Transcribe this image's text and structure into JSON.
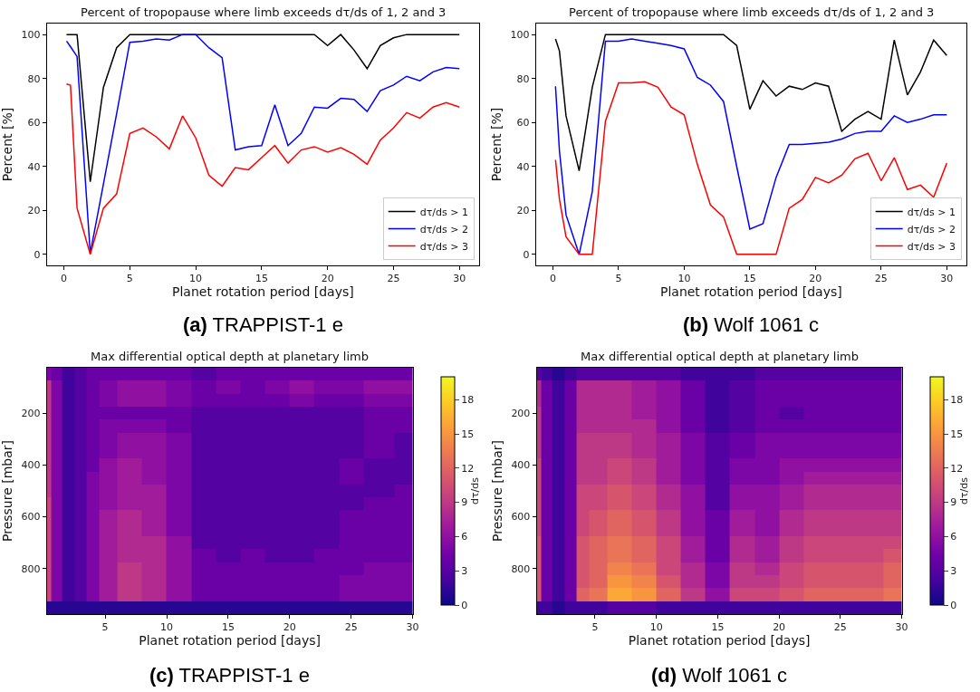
{
  "chart_data": [
    {
      "type": "line",
      "title": "Percent of tropopause where limb exceeds dτ/ds of 1, 2 and 3",
      "xlabel": "Planet rotation period [days]",
      "ylabel": "Percent [%]",
      "x": [
        0.2,
        0.5,
        1,
        2,
        3,
        4,
        5,
        6,
        7,
        8,
        9,
        10,
        11,
        12,
        13,
        14,
        15,
        16,
        17,
        18,
        19,
        20,
        21,
        22,
        23,
        24,
        25,
        26,
        27,
        28,
        29,
        30
      ],
      "series": [
        {
          "name": "dτ/ds > 1",
          "color": "#000000",
          "values": [
            100,
            100,
            100,
            33,
            76,
            94,
            100,
            100,
            100,
            100,
            100,
            100,
            100,
            100,
            100,
            100,
            100,
            100,
            100,
            100,
            100,
            95,
            100,
            93,
            84.5,
            95,
            98.5,
            100,
            100,
            100,
            100,
            100
          ]
        },
        {
          "name": "dτ/ds > 2",
          "color": "#0000ff",
          "values": [
            97,
            94.5,
            90,
            0.5,
            32,
            64,
            96.5,
            97,
            98,
            97.5,
            100,
            100,
            94,
            89.5,
            47.5,
            49,
            49.5,
            68,
            49.5,
            55,
            67,
            66.5,
            71,
            70.5,
            65,
            74.5,
            77,
            81,
            79,
            83,
            85,
            84.5
          ]
        },
        {
          "name": "dτ/ds > 3",
          "color": "#ff0000",
          "values": [
            77.5,
            77,
            21,
            0,
            21,
            27.5,
            55,
            57.5,
            53.5,
            48,
            63,
            53,
            36,
            31,
            39.5,
            38.5,
            44,
            49.5,
            41.5,
            47.5,
            49,
            46.5,
            48.5,
            45.5,
            41,
            52,
            57.5,
            64.5,
            62,
            67,
            69,
            67
          ]
        }
      ],
      "xlim": [
        -1.3,
        31.5
      ],
      "ylim": [
        -5,
        105
      ],
      "xticks": [
        0,
        5,
        10,
        15,
        20,
        25,
        30
      ],
      "yticks": [
        0,
        20,
        40,
        60,
        80,
        100
      ],
      "legend": "bottom right",
      "annotations": [
        "(a) TRAPPIST-1 e"
      ]
    },
    {
      "type": "line",
      "title": "Percent of tropopause where limb exceeds dτ/ds of 1, 2 and 3",
      "xlabel": "Planet rotation period [days]",
      "ylabel": "Percent [%]",
      "x": [
        0.2,
        0.5,
        1,
        2,
        3,
        4,
        5,
        6,
        7,
        8,
        9,
        10,
        11,
        12,
        13,
        14,
        15,
        16,
        17,
        18,
        19,
        20,
        21,
        22,
        23,
        24,
        25,
        26,
        27,
        28,
        29,
        30
      ],
      "series": [
        {
          "name": "dτ/ds > 1",
          "color": "#000000",
          "values": [
            98,
            92.5,
            63,
            38,
            76,
            100,
            100,
            100,
            100,
            100,
            100,
            100,
            100,
            100,
            100,
            95,
            66,
            79,
            72,
            76.5,
            75,
            78,
            76.5,
            56,
            61.5,
            65,
            61.5,
            97.5,
            72.5,
            83,
            97.5,
            90.5
          ]
        },
        {
          "name": "dτ/ds > 2",
          "color": "#0000ff",
          "values": [
            76.5,
            47,
            18,
            0,
            28.5,
            97,
            97,
            98,
            97,
            96,
            95,
            93.5,
            80.5,
            77,
            69.5,
            40,
            11.5,
            14,
            35,
            50,
            50,
            50.5,
            51,
            52.5,
            55,
            56,
            56,
            63,
            60,
            61.5,
            63.5,
            63.5
          ]
        },
        {
          "name": "dτ/ds > 3",
          "color": "#ff0000",
          "values": [
            43,
            25,
            8,
            0,
            0,
            60.5,
            78,
            78,
            78.5,
            76,
            67,
            63.5,
            41,
            22.5,
            17,
            0,
            0,
            0,
            0,
            21,
            25,
            35,
            32.5,
            36,
            43.5,
            46,
            33.5,
            44,
            29.5,
            31.5,
            26,
            41.5
          ]
        }
      ],
      "xlim": [
        -1.3,
        31.5
      ],
      "ylim": [
        -5,
        105
      ],
      "xticks": [
        0,
        5,
        10,
        15,
        20,
        25,
        30
      ],
      "yticks": [
        0,
        20,
        40,
        60,
        80,
        100
      ],
      "legend": "bottom right",
      "annotations": [
        "(b) Wolf 1061 c"
      ]
    },
    {
      "type": "heatmap",
      "title": "Max differential optical depth at planetary limb",
      "xlabel": "Planet rotation period [days]",
      "ylabel": "Pressure [mbar]",
      "clabel": "dτ/ds",
      "x": [
        0.25,
        1,
        2,
        3,
        4,
        5,
        7,
        9,
        11,
        13,
        15,
        17,
        19,
        21,
        23,
        25,
        27,
        30
      ],
      "y_categories": [
        null,
        null,
        null,
        "200",
        null,
        null,
        null,
        "400",
        null,
        null,
        null,
        "600",
        null,
        null,
        null,
        "800",
        null,
        null,
        null
      ],
      "cells": [
        [
          5,
          4,
          2,
          3,
          4,
          4,
          4,
          4,
          4,
          3,
          4,
          4,
          4,
          4,
          4,
          4,
          4,
          4
        ],
        [
          9,
          5,
          2,
          3,
          4,
          5,
          6,
          6,
          5,
          4,
          5,
          4,
          5,
          6,
          5,
          5,
          6,
          6
        ],
        [
          9,
          5,
          2,
          3,
          4,
          5,
          6,
          6,
          5,
          4,
          4,
          4,
          4,
          5,
          4,
          4,
          5,
          5
        ],
        [
          9,
          5,
          2,
          3,
          4,
          4,
          4,
          4,
          4,
          3,
          3,
          3,
          3,
          3,
          3,
          3,
          4,
          4
        ],
        [
          9,
          5,
          2,
          3,
          4,
          5,
          5,
          5,
          4,
          3,
          3,
          3,
          3,
          3,
          3,
          3,
          4,
          4
        ],
        [
          9,
          5,
          2,
          3,
          4,
          5,
          6,
          6,
          5,
          3,
          3,
          3,
          3,
          3,
          3,
          3,
          4,
          3
        ],
        [
          9,
          5,
          2,
          3,
          4,
          5,
          6,
          6,
          5,
          3,
          3,
          3,
          3,
          3,
          3,
          3,
          4,
          3
        ],
        [
          9,
          5,
          2,
          3,
          4,
          6,
          7,
          6,
          5,
          3,
          3,
          3,
          3,
          3,
          3,
          4,
          3,
          3
        ],
        [
          9,
          5,
          2,
          3,
          5,
          6,
          7,
          6,
          5,
          3,
          3,
          3,
          3,
          3,
          3,
          4,
          3,
          3
        ],
        [
          9,
          5,
          2,
          3,
          5,
          6,
          7,
          7,
          5,
          3,
          3,
          3,
          3,
          3,
          3,
          3,
          3,
          4
        ],
        [
          10,
          5,
          2,
          3,
          5,
          6,
          7,
          7,
          5,
          3,
          3,
          3,
          3,
          3,
          3,
          3,
          4,
          4
        ],
        [
          10,
          5,
          2,
          3,
          5,
          7,
          8,
          7,
          5,
          3,
          3,
          3,
          3,
          3,
          3,
          4,
          4,
          4
        ],
        [
          10,
          5,
          2,
          3,
          5,
          7,
          8,
          7,
          5,
          3,
          3,
          3,
          3,
          3,
          3,
          4,
          4,
          4
        ],
        [
          10,
          5,
          2,
          3,
          5,
          7,
          8,
          8,
          6,
          3,
          3,
          3,
          3,
          3,
          3,
          4,
          4,
          4
        ],
        [
          10,
          5,
          2,
          3,
          5,
          7,
          8,
          8,
          6,
          4,
          3,
          4,
          3,
          3,
          4,
          4,
          4,
          4
        ],
        [
          10,
          5,
          2,
          3,
          5,
          7,
          9,
          8,
          6,
          4,
          4,
          4,
          4,
          4,
          4,
          4,
          5,
          5
        ],
        [
          10,
          5,
          2,
          3,
          5,
          7,
          9,
          8,
          6,
          4,
          4,
          4,
          4,
          4,
          4,
          5,
          5,
          5
        ],
        [
          10,
          5,
          2,
          3,
          5,
          7,
          9,
          8,
          6,
          4,
          4,
          4,
          4,
          4,
          4,
          5,
          5,
          5
        ],
        [
          1,
          1,
          1,
          1,
          1,
          1,
          1,
          1,
          1,
          1,
          1,
          1,
          1,
          1,
          1,
          1,
          1,
          1
        ]
      ],
      "clim": [
        0,
        20
      ],
      "cticks": [
        0,
        3,
        6,
        9,
        12,
        15,
        18
      ],
      "xlim": [
        0.25,
        30
      ],
      "xticks": [
        5,
        10,
        15,
        20,
        25,
        30
      ],
      "annotations": [
        "(c) TRAPPIST-1 e"
      ]
    },
    {
      "type": "heatmap",
      "title": "Max differential optical depth at planetary limb",
      "xlabel": "Planet rotation period [days]",
      "ylabel": "Pressure [mbar]",
      "clabel": "dτ/ds",
      "x": [
        0.25,
        1,
        2,
        3,
        4,
        5,
        7,
        9,
        11,
        13,
        15,
        17,
        19,
        21,
        23,
        25,
        27,
        30
      ],
      "y_categories": [
        null,
        null,
        null,
        "200",
        null,
        null,
        null,
        "400",
        null,
        null,
        null,
        "600",
        null,
        null,
        null,
        "800",
        null,
        null,
        null
      ],
      "cells": [
        [
          3,
          2,
          1,
          2,
          3,
          3,
          3,
          3,
          3,
          2,
          2,
          2,
          3,
          3,
          3,
          3,
          3,
          3
        ],
        [
          8,
          4,
          2,
          4,
          8,
          8,
          8,
          7,
          6,
          4,
          2,
          3,
          4,
          4,
          4,
          4,
          4,
          4
        ],
        [
          8,
          4,
          2,
          4,
          8,
          8,
          8,
          7,
          6,
          4,
          2,
          3,
          4,
          4,
          4,
          4,
          4,
          4
        ],
        [
          9,
          4,
          2,
          4,
          8,
          8,
          8,
          7,
          6,
          4,
          2,
          3,
          4,
          3,
          4,
          4,
          4,
          4
        ],
        [
          9,
          4,
          2,
          4,
          8,
          8,
          8,
          8,
          6,
          4,
          2,
          3,
          4,
          4,
          4,
          4,
          4,
          4
        ],
        [
          9,
          4,
          2,
          4,
          9,
          9,
          9,
          8,
          7,
          5,
          3,
          4,
          5,
          5,
          5,
          5,
          5,
          5
        ],
        [
          9,
          4,
          2,
          4,
          9,
          9,
          9,
          8,
          7,
          5,
          3,
          4,
          5,
          5,
          5,
          5,
          5,
          5
        ],
        [
          10,
          4,
          2,
          4,
          9,
          9,
          10,
          9,
          7,
          5,
          3,
          5,
          5,
          6,
          6,
          6,
          6,
          6
        ],
        [
          10,
          4,
          2,
          4,
          9,
          9,
          10,
          9,
          7,
          5,
          3,
          5,
          5,
          6,
          7,
          7,
          7,
          7
        ],
        [
          10,
          4,
          2,
          4,
          10,
          10,
          11,
          10,
          8,
          6,
          3,
          6,
          6,
          7,
          8,
          8,
          8,
          8
        ],
        [
          10,
          4,
          2,
          4,
          10,
          10,
          11,
          10,
          8,
          6,
          3,
          6,
          6,
          7,
          8,
          8,
          8,
          8
        ],
        [
          10,
          4,
          2,
          4,
          10,
          11,
          12,
          11,
          9,
          6,
          4,
          7,
          6,
          8,
          9,
          9,
          9,
          9
        ],
        [
          10,
          4,
          2,
          4,
          10,
          11,
          12,
          11,
          9,
          6,
          4,
          7,
          6,
          8,
          9,
          9,
          9,
          9
        ],
        [
          11,
          4,
          2,
          4,
          11,
          12,
          13,
          12,
          10,
          7,
          4,
          8,
          7,
          9,
          10,
          10,
          10,
          10
        ],
        [
          11,
          4,
          2,
          4,
          11,
          12,
          13,
          12,
          10,
          7,
          4,
          8,
          7,
          9,
          10,
          10,
          10,
          11
        ],
        [
          11,
          4,
          2,
          4,
          11,
          12,
          14,
          13,
          10,
          8,
          5,
          9,
          8,
          10,
          11,
          11,
          11,
          12
        ],
        [
          11,
          4,
          2,
          4,
          11,
          12,
          15,
          14,
          11,
          8,
          5,
          9,
          9,
          10,
          11,
          11,
          11,
          12
        ],
        [
          11,
          4,
          2,
          4,
          12,
          13,
          16,
          15,
          12,
          9,
          6,
          10,
          10,
          11,
          12,
          12,
          12,
          13
        ],
        [
          2,
          2,
          1,
          2,
          2,
          2,
          3,
          3,
          2,
          2,
          2,
          2,
          2,
          2,
          2,
          2,
          2,
          2
        ]
      ],
      "clim": [
        0,
        20
      ],
      "cticks": [
        0,
        3,
        6,
        9,
        12,
        15,
        18
      ],
      "xlim": [
        0.25,
        30
      ],
      "xticks": [
        5,
        10,
        15,
        20,
        25,
        30
      ],
      "annotations": [
        "(d) Wolf 1061 c"
      ]
    }
  ]
}
